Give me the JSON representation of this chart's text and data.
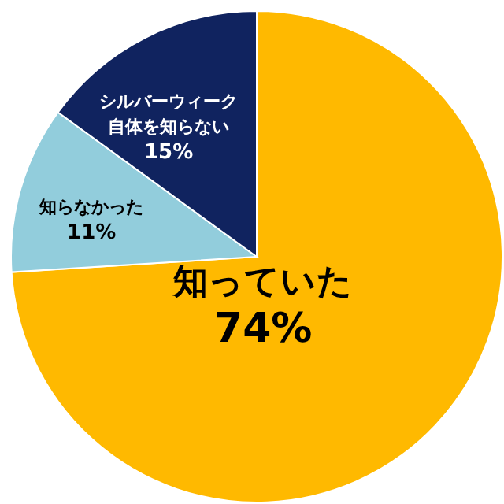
{
  "chart_data": {
    "type": "pie",
    "categories": [
      "知っていた",
      "知らなかった",
      "シルバーウィーク自体を知らない"
    ],
    "values": [
      74,
      11,
      15
    ],
    "value_labels": [
      "74%",
      "11%",
      "15%"
    ],
    "colors": [
      "#ffb900",
      "#92cddc",
      "#10235f"
    ]
  }
}
